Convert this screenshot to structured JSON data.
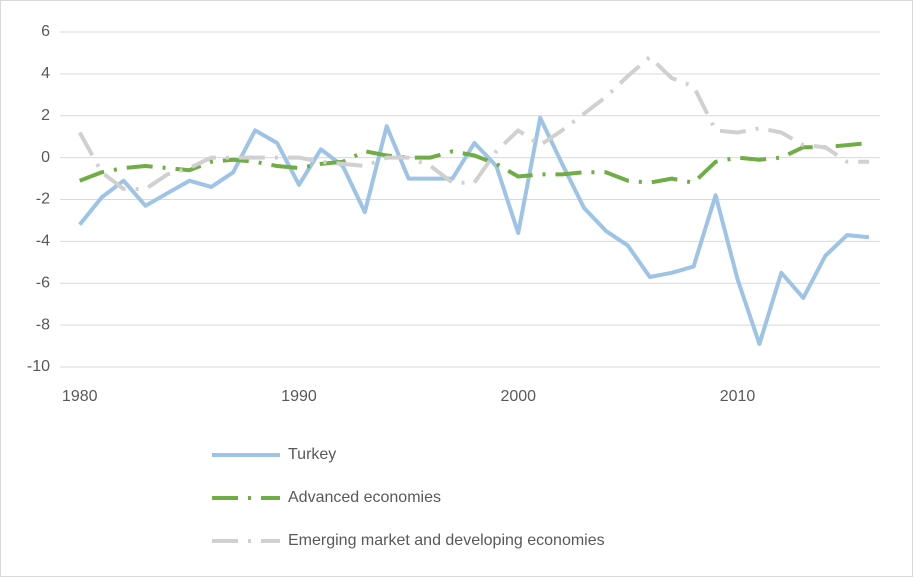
{
  "chart_data": {
    "type": "line",
    "x": [
      1980,
      1981,
      1982,
      1983,
      1984,
      1985,
      1986,
      1987,
      1988,
      1989,
      1990,
      1991,
      1992,
      1993,
      1994,
      1995,
      1996,
      1997,
      1998,
      1999,
      2000,
      2001,
      2002,
      2003,
      2004,
      2005,
      2006,
      2007,
      2008,
      2009,
      2010,
      2011,
      2012,
      2013,
      2014,
      2015,
      2016
    ],
    "series": [
      {
        "name": "Turkey",
        "color": "#9dc3e6",
        "style": "solid",
        "values": [
          -3.2,
          -1.9,
          -1.1,
          -2.3,
          -1.7,
          -1.1,
          -1.4,
          -0.7,
          1.3,
          0.7,
          -1.3,
          0.4,
          -0.4,
          -2.6,
          1.5,
          -1.0,
          -1.0,
          -1.0,
          0.7,
          -0.4,
          -3.6,
          1.9,
          -0.3,
          -2.4,
          -3.5,
          -4.2,
          -5.7,
          -5.5,
          -5.2,
          -1.8,
          -5.8,
          -8.9,
          -5.5,
          -6.7,
          -4.7,
          -3.7,
          -3.8
        ]
      },
      {
        "name": "Advanced economies",
        "color": "#70ad47",
        "style": "dash-dot",
        "values": [
          -1.1,
          -0.7,
          -0.5,
          -0.4,
          -0.5,
          -0.6,
          -0.2,
          -0.1,
          -0.2,
          -0.4,
          -0.5,
          -0.3,
          -0.2,
          0.3,
          0.1,
          0.0,
          0.0,
          0.3,
          0.1,
          -0.3,
          -0.9,
          -0.8,
          -0.8,
          -0.7,
          -0.7,
          -1.1,
          -1.2,
          -1.0,
          -1.2,
          -0.2,
          0.0,
          -0.1,
          0.0,
          0.5,
          0.5,
          0.6,
          0.7
        ]
      },
      {
        "name": "Emerging market and developing economies",
        "color": "#d0d0d0",
        "style": "dash-dot",
        "values": [
          1.2,
          -0.7,
          -1.5,
          -1.5,
          -0.8,
          -0.5,
          0.0,
          0.0,
          0.0,
          0.0,
          0.0,
          -0.2,
          -0.3,
          -0.4,
          0.0,
          0.0,
          -0.4,
          -1.2,
          -1.2,
          0.3,
          1.3,
          0.6,
          1.3,
          2.1,
          2.9,
          3.9,
          4.8,
          3.8,
          3.4,
          1.3,
          1.2,
          1.4,
          1.2,
          0.6,
          0.5,
          -0.2,
          -0.2
        ]
      }
    ],
    "xlim": [
      1979.1,
      2016.5
    ],
    "xticks": [
      1980,
      1990,
      2000,
      2010
    ],
    "ylim": [
      -10,
      6
    ],
    "yticks": [
      -10,
      -8,
      -6,
      -4,
      -2,
      0,
      2,
      4,
      6
    ],
    "grid": true
  }
}
